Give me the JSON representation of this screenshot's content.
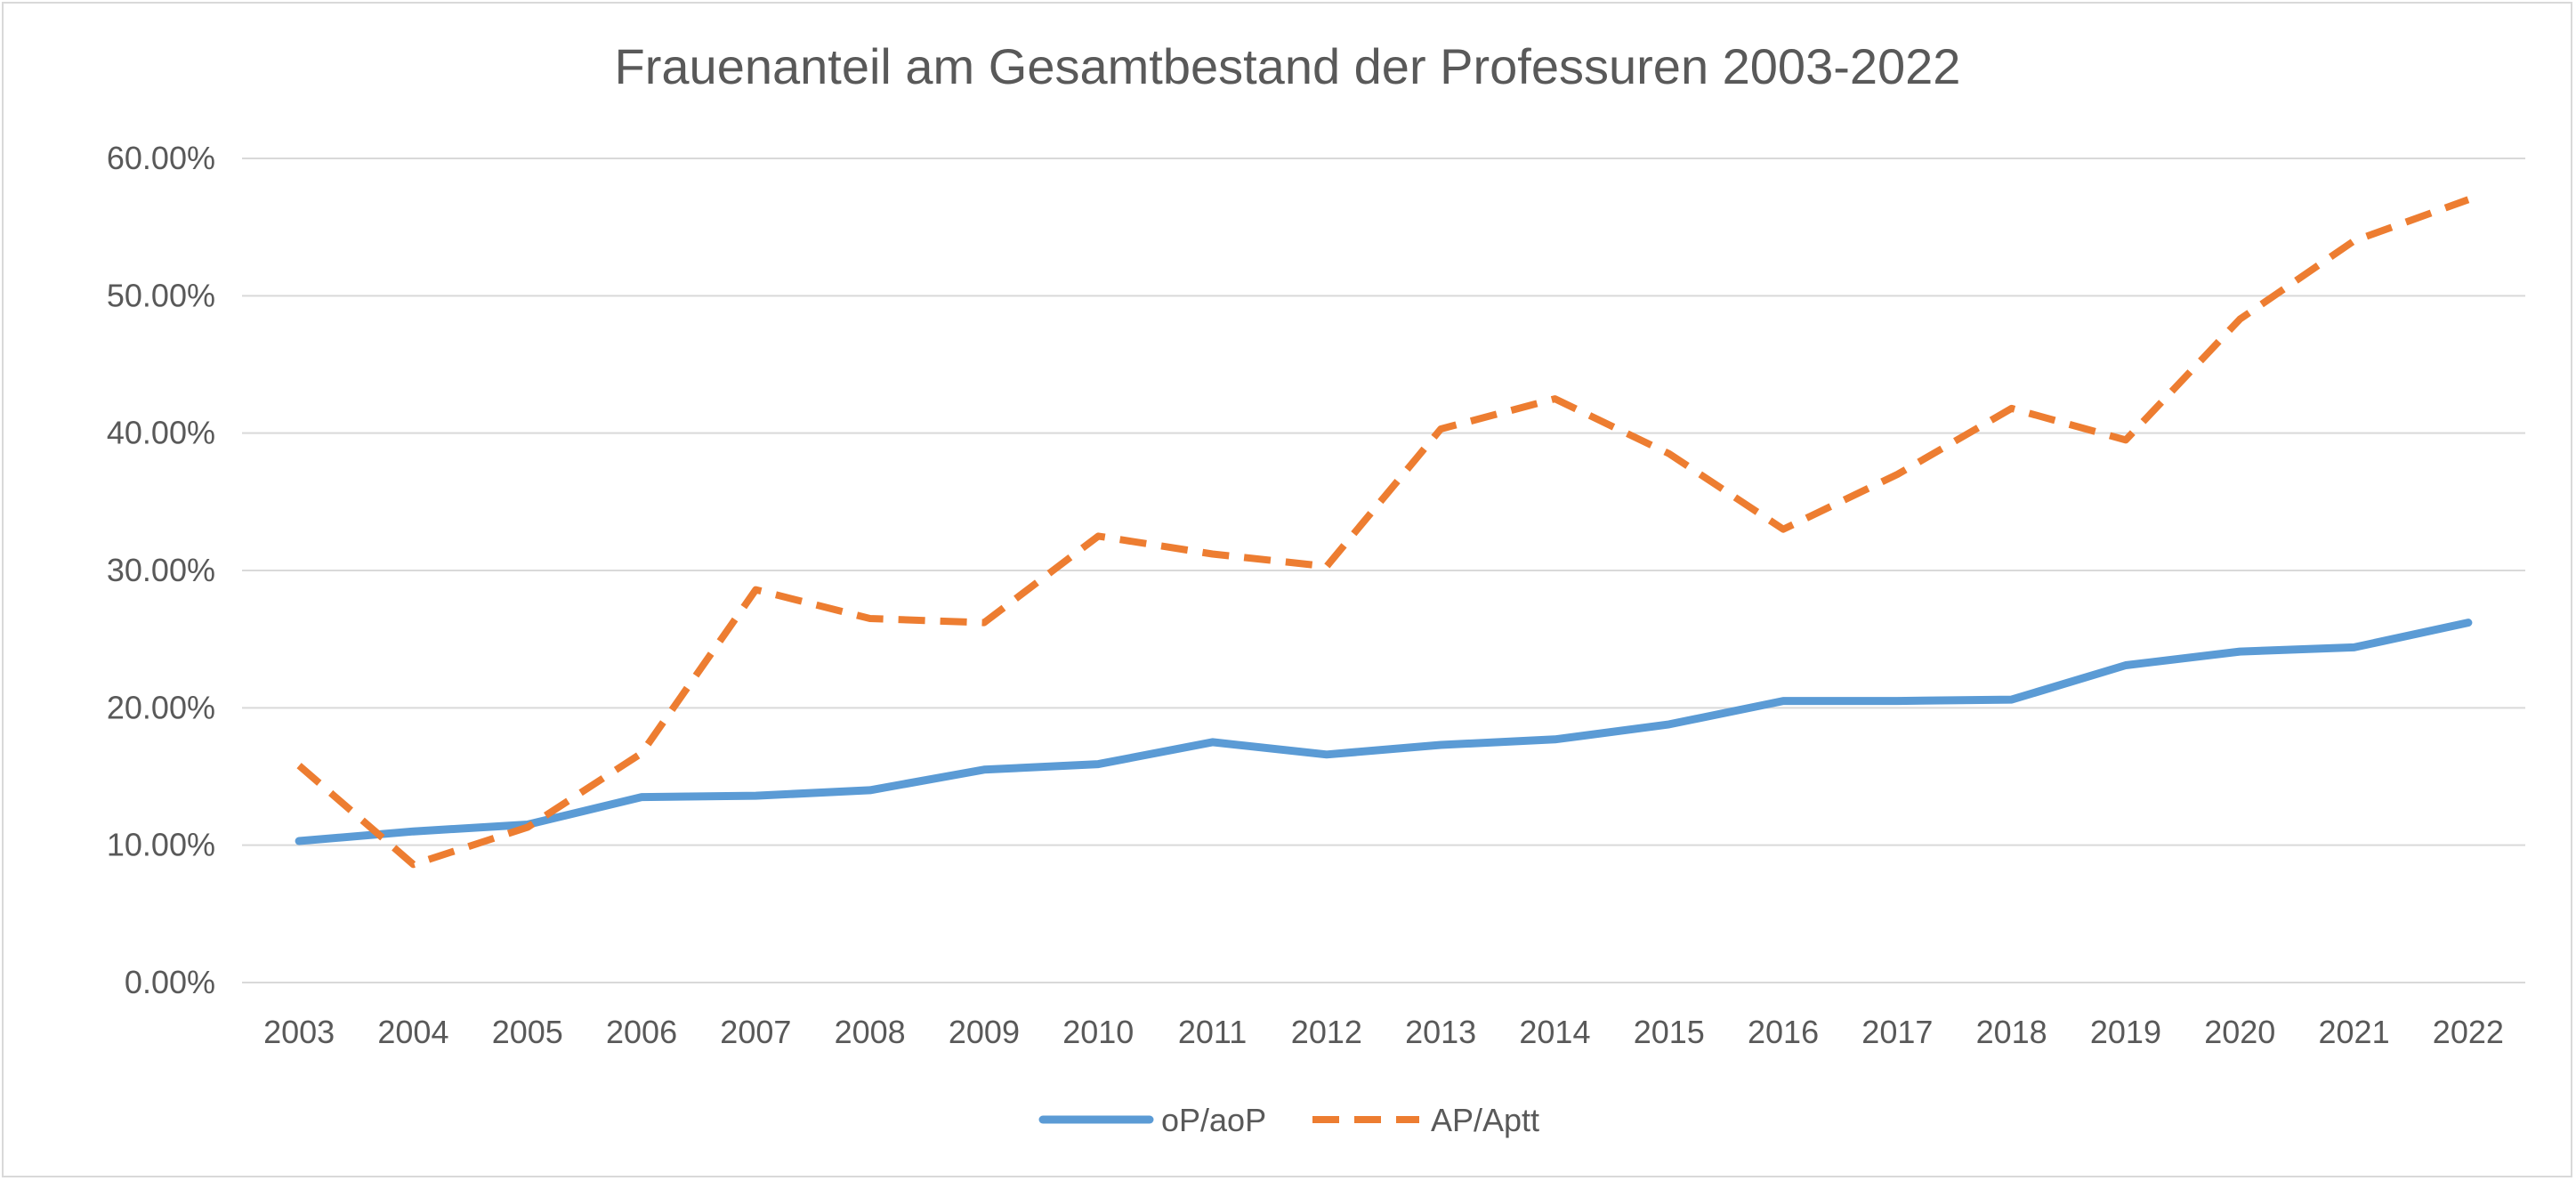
{
  "chart_data": {
    "type": "line",
    "title": "Frauenanteil am Gesamtbestand der Professuren 2003-2022",
    "xlabel": "",
    "ylabel": "",
    "ylim": [
      0,
      0.6
    ],
    "y_ticks": [
      "0.00%",
      "10.00%",
      "20.00%",
      "30.00%",
      "40.00%",
      "50.00%",
      "60.00%"
    ],
    "y_tick_values": [
      0,
      0.1,
      0.2,
      0.3,
      0.4,
      0.5,
      0.6
    ],
    "grid": true,
    "legend_position": "bottom",
    "categories": [
      "2003",
      "2004",
      "2005",
      "2006",
      "2007",
      "2008",
      "2009",
      "2010",
      "2011",
      "2012",
      "2013",
      "2014",
      "2015",
      "2016",
      "2017",
      "2018",
      "2019",
      "2020",
      "2021",
      "2022"
    ],
    "series": [
      {
        "name": "oP/aoP",
        "color": "#5b9bd5",
        "style": "solid",
        "values": [
          0.103,
          0.11,
          0.115,
          0.135,
          0.136,
          0.14,
          0.155,
          0.159,
          0.175,
          0.166,
          0.173,
          0.177,
          0.188,
          0.205,
          0.205,
          0.206,
          0.231,
          0.241,
          0.244,
          0.262
        ]
      },
      {
        "name": "AP/Aptt",
        "color": "#ed7d31",
        "style": "dashed",
        "values": [
          0.158,
          0.086,
          0.113,
          0.167,
          0.286,
          0.265,
          0.262,
          0.325,
          0.312,
          0.303,
          0.403,
          0.425,
          0.385,
          0.33,
          0.37,
          0.418,
          0.395,
          0.483,
          0.54,
          0.57
        ]
      }
    ]
  }
}
